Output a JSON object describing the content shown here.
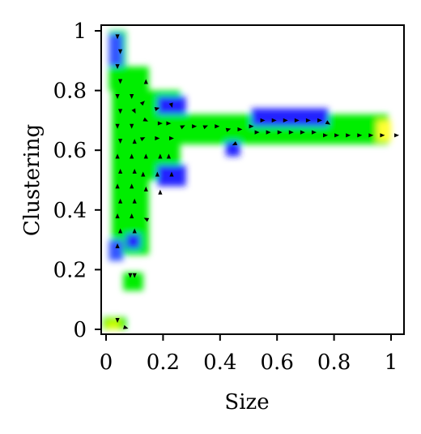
{
  "chart_data": {
    "type": "heatmap",
    "title": "",
    "xlabel": "Size",
    "ylabel": "Clustering",
    "xlim": [
      0,
      1
    ],
    "ylim": [
      0,
      1
    ],
    "grid": false,
    "x_ticks": [
      {
        "value": 0,
        "label": "0"
      },
      {
        "value": 0.2,
        "label": "0.2"
      },
      {
        "value": 0.4,
        "label": "0.4"
      },
      {
        "value": 0.6,
        "label": "0.6"
      },
      {
        "value": 0.8,
        "label": "0.8"
      },
      {
        "value": 1,
        "label": "1"
      }
    ],
    "y_ticks": [
      {
        "value": 0,
        "label": "0"
      },
      {
        "value": 0.2,
        "label": "0.2"
      },
      {
        "value": 0.4,
        "label": "0.4"
      },
      {
        "value": 0.6,
        "label": "0.6"
      },
      {
        "value": 0.8,
        "label": "0.8"
      },
      {
        "value": 1,
        "label": "1"
      }
    ],
    "colors": {
      "high": "#00ee00",
      "low": "#2222ff",
      "peak": "#ffff33",
      "arrow": "#000000"
    },
    "regions": [
      {
        "x": [
          0.01,
          0.07
        ],
        "y": [
          0.8,
          1.0
        ],
        "color": "#00ee00"
      },
      {
        "x": [
          0.01,
          0.06
        ],
        "y": [
          0.88,
          0.99
        ],
        "color": "#3355ff"
      },
      {
        "x": [
          0.02,
          0.15
        ],
        "y": [
          0.25,
          0.88
        ],
        "color": "#00ee00"
      },
      {
        "x": [
          0.1,
          0.26
        ],
        "y": [
          0.5,
          0.8
        ],
        "color": "#00ee00"
      },
      {
        "x": [
          0.18,
          0.28
        ],
        "y": [
          0.68,
          0.78
        ],
        "color": "#2222ff"
      },
      {
        "x": [
          0.18,
          0.28
        ],
        "y": [
          0.48,
          0.55
        ],
        "color": "#2222ff"
      },
      {
        "x": [
          0.01,
          0.06
        ],
        "y": [
          0.23,
          0.3
        ],
        "color": "#3355ff"
      },
      {
        "x": [
          0.07,
          0.12
        ],
        "y": [
          0.27,
          0.32
        ],
        "color": "#2222ff"
      },
      {
        "x": [
          0.18,
          0.99
        ],
        "y": [
          0.62,
          0.72
        ],
        "color": "#00ee00"
      },
      {
        "x": [
          0.51,
          0.78
        ],
        "y": [
          0.68,
          0.74
        ],
        "color": "#2222ff"
      },
      {
        "x": [
          0.42,
          0.47
        ],
        "y": [
          0.58,
          0.63
        ],
        "color": "#2222ff"
      },
      {
        "x": [
          0.95,
          1.0
        ],
        "y": [
          0.63,
          0.7
        ],
        "color": "#ffff33"
      },
      {
        "x": [
          0.06,
          0.13
        ],
        "y": [
          0.13,
          0.19
        ],
        "color": "#00ee00"
      },
      {
        "x": [
          -0.01,
          0.07
        ],
        "y": [
          0.0,
          0.04
        ],
        "color": "#00ee00"
      },
      {
        "x": [
          0.0,
          0.05
        ],
        "y": [
          0.0,
          0.03
        ],
        "color": "#ccff00"
      }
    ],
    "arrows": [
      {
        "x": 0.04,
        "y": 0.98,
        "dx": 0,
        "dy": -1
      },
      {
        "x": 0.05,
        "y": 0.93,
        "dx": 0,
        "dy": -1
      },
      {
        "x": 0.04,
        "y": 0.88,
        "dx": 0,
        "dy": -1
      },
      {
        "x": 0.05,
        "y": 0.83,
        "dx": 0,
        "dy": -1
      },
      {
        "x": 0.04,
        "y": 0.78,
        "dx": 0,
        "dy": -1
      },
      {
        "x": 0.05,
        "y": 0.73,
        "dx": 0,
        "dy": -1
      },
      {
        "x": 0.04,
        "y": 0.68,
        "dx": 0,
        "dy": -1
      },
      {
        "x": 0.05,
        "y": 0.63,
        "dx": 0,
        "dy": -1
      },
      {
        "x": 0.04,
        "y": 0.58,
        "dx": 0,
        "dy": 1
      },
      {
        "x": 0.05,
        "y": 0.53,
        "dx": 0,
        "dy": 1
      },
      {
        "x": 0.04,
        "y": 0.48,
        "dx": 0,
        "dy": 1
      },
      {
        "x": 0.05,
        "y": 0.43,
        "dx": 0,
        "dy": 1
      },
      {
        "x": 0.04,
        "y": 0.38,
        "dx": 0,
        "dy": 1
      },
      {
        "x": 0.05,
        "y": 0.33,
        "dx": 0,
        "dy": 1
      },
      {
        "x": 0.04,
        "y": 0.28,
        "dx": 0,
        "dy": 1
      },
      {
        "x": 0.09,
        "y": 0.78,
        "dx": 0,
        "dy": -1
      },
      {
        "x": 0.1,
        "y": 0.73,
        "dx": 0.5,
        "dy": -1
      },
      {
        "x": 0.09,
        "y": 0.68,
        "dx": 0,
        "dy": -1
      },
      {
        "x": 0.1,
        "y": 0.63,
        "dx": 0,
        "dy": 1
      },
      {
        "x": 0.09,
        "y": 0.58,
        "dx": 0,
        "dy": 1
      },
      {
        "x": 0.1,
        "y": 0.53,
        "dx": 0,
        "dy": 1
      },
      {
        "x": 0.09,
        "y": 0.48,
        "dx": 0,
        "dy": 1
      },
      {
        "x": 0.1,
        "y": 0.43,
        "dx": 0,
        "dy": 1
      },
      {
        "x": 0.09,
        "y": 0.38,
        "dx": 0,
        "dy": 1
      },
      {
        "x": 0.1,
        "y": 0.33,
        "dx": 0,
        "dy": 1
      },
      {
        "x": 0.14,
        "y": 0.83,
        "dx": 0,
        "dy": 1
      },
      {
        "x": 0.13,
        "y": 0.76,
        "dx": 1,
        "dy": 1
      },
      {
        "x": 0.14,
        "y": 0.7,
        "dx": 1,
        "dy": -0.5
      },
      {
        "x": 0.13,
        "y": 0.64,
        "dx": 1,
        "dy": 0.5
      },
      {
        "x": 0.14,
        "y": 0.58,
        "dx": 0,
        "dy": 1
      },
      {
        "x": 0.13,
        "y": 0.52,
        "dx": 0,
        "dy": 1
      },
      {
        "x": 0.14,
        "y": 0.47,
        "dx": 0,
        "dy": 1
      },
      {
        "x": 0.14,
        "y": 0.37,
        "dx": -1,
        "dy": 0.5
      },
      {
        "x": 0.18,
        "y": 0.74,
        "dx": 1,
        "dy": 0.3
      },
      {
        "x": 0.19,
        "y": 0.69,
        "dx": 1,
        "dy": 0
      },
      {
        "x": 0.18,
        "y": 0.64,
        "dx": 1,
        "dy": 0
      },
      {
        "x": 0.19,
        "y": 0.58,
        "dx": 0,
        "dy": 1
      },
      {
        "x": 0.18,
        "y": 0.52,
        "dx": 0,
        "dy": 1
      },
      {
        "x": 0.19,
        "y": 0.46,
        "dx": 0,
        "dy": 1
      },
      {
        "x": 0.23,
        "y": 0.75,
        "dx": 0.3,
        "dy": -1
      },
      {
        "x": 0.22,
        "y": 0.69,
        "dx": 1,
        "dy": 0
      },
      {
        "x": 0.23,
        "y": 0.64,
        "dx": 1,
        "dy": 0
      },
      {
        "x": 0.22,
        "y": 0.58,
        "dx": 0,
        "dy": 1
      },
      {
        "x": 0.23,
        "y": 0.52,
        "dx": 0,
        "dy": 1
      },
      {
        "x": 0.27,
        "y": 0.68,
        "dx": 1,
        "dy": 0.5
      },
      {
        "x": 0.31,
        "y": 0.68,
        "dx": 1,
        "dy": 0
      },
      {
        "x": 0.35,
        "y": 0.68,
        "dx": 1,
        "dy": 0.4
      },
      {
        "x": 0.39,
        "y": 0.68,
        "dx": 1,
        "dy": 0
      },
      {
        "x": 0.43,
        "y": 0.67,
        "dx": 1,
        "dy": 0.3
      },
      {
        "x": 0.47,
        "y": 0.67,
        "dx": 1,
        "dy": 0
      },
      {
        "x": 0.45,
        "y": 0.62,
        "dx": -1,
        "dy": -0.5
      },
      {
        "x": 0.51,
        "y": 0.68,
        "dx": 1,
        "dy": 0
      },
      {
        "x": 0.55,
        "y": 0.7,
        "dx": 1,
        "dy": 0
      },
      {
        "x": 0.59,
        "y": 0.7,
        "dx": 1,
        "dy": 0
      },
      {
        "x": 0.63,
        "y": 0.7,
        "dx": 1,
        "dy": 0
      },
      {
        "x": 0.67,
        "y": 0.7,
        "dx": 1,
        "dy": 0
      },
      {
        "x": 0.71,
        "y": 0.7,
        "dx": 1,
        "dy": 0
      },
      {
        "x": 0.75,
        "y": 0.7,
        "dx": 1,
        "dy": 0
      },
      {
        "x": 0.78,
        "y": 0.69,
        "dx": 1,
        "dy": -0.6
      },
      {
        "x": 0.53,
        "y": 0.66,
        "dx": 1,
        "dy": 0
      },
      {
        "x": 0.57,
        "y": 0.66,
        "dx": 1,
        "dy": 0
      },
      {
        "x": 0.61,
        "y": 0.66,
        "dx": 1,
        "dy": 0
      },
      {
        "x": 0.65,
        "y": 0.66,
        "dx": 1,
        "dy": 0
      },
      {
        "x": 0.69,
        "y": 0.66,
        "dx": 1,
        "dy": 0
      },
      {
        "x": 0.73,
        "y": 0.66,
        "dx": 1,
        "dy": 0
      },
      {
        "x": 0.77,
        "y": 0.65,
        "dx": 1,
        "dy": 0
      },
      {
        "x": 0.81,
        "y": 0.65,
        "dx": 1,
        "dy": 0
      },
      {
        "x": 0.85,
        "y": 0.65,
        "dx": 1,
        "dy": 0
      },
      {
        "x": 0.89,
        "y": 0.65,
        "dx": 1,
        "dy": 0
      },
      {
        "x": 0.93,
        "y": 0.65,
        "dx": 1,
        "dy": 0
      },
      {
        "x": 0.97,
        "y": 0.65,
        "dx": 1,
        "dy": 0
      },
      {
        "x": 1.02,
        "y": 0.65,
        "dx": 1,
        "dy": 0
      },
      {
        "x": 0.085,
        "y": 0.18,
        "dx": 0,
        "dy": -1
      },
      {
        "x": 0.1,
        "y": 0.18,
        "dx": 0,
        "dy": -1
      },
      {
        "x": 0.04,
        "y": 0.03,
        "dx": 0,
        "dy": -1
      },
      {
        "x": 0.07,
        "y": 0.005,
        "dx": 1,
        "dy": -0.3
      }
    ]
  }
}
